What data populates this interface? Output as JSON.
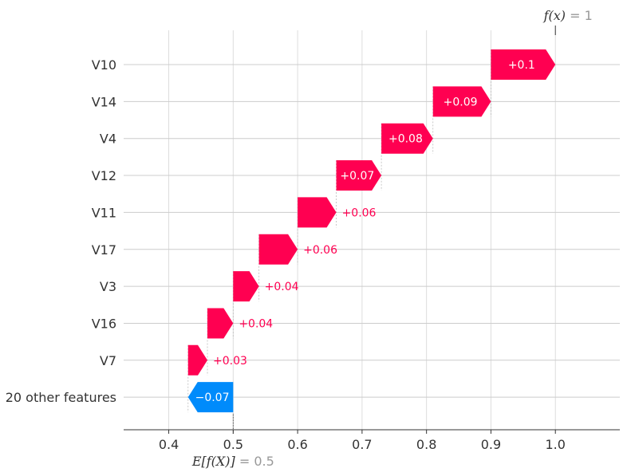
{
  "chart_data": {
    "type": "waterfall",
    "base_value": 0.5,
    "base_value_text": "0.5",
    "output_value": 1,
    "output_value_text": "1",
    "expected_label": "E[f(X)]",
    "output_label": "f(x)",
    "xlim": [
      0.33,
      1.1
    ],
    "xticks": [
      0.4,
      0.5,
      0.6,
      0.7,
      0.8,
      0.9,
      1.0
    ],
    "xtick_labels": [
      "0.4",
      "0.5",
      "0.6",
      "0.7",
      "0.8",
      "0.9",
      "1.0"
    ],
    "features": [
      {
        "name": "V10",
        "value": 0.1,
        "label": "+0.1"
      },
      {
        "name": "V14",
        "value": 0.09,
        "label": "+0.09"
      },
      {
        "name": "V4",
        "value": 0.08,
        "label": "+0.08"
      },
      {
        "name": "V12",
        "value": 0.07,
        "label": "+0.07"
      },
      {
        "name": "V11",
        "value": 0.06,
        "label": "+0.06"
      },
      {
        "name": "V17",
        "value": 0.06,
        "label": "+0.06"
      },
      {
        "name": "V3",
        "value": 0.04,
        "label": "+0.04"
      },
      {
        "name": "V16",
        "value": 0.04,
        "label": "+0.04"
      },
      {
        "name": "V7",
        "value": 0.03,
        "label": "+0.03"
      },
      {
        "name": "20 other features",
        "value": -0.07,
        "label": "−0.07"
      }
    ],
    "colors": {
      "positive": "#ff0051",
      "negative": "#008bfb"
    }
  }
}
